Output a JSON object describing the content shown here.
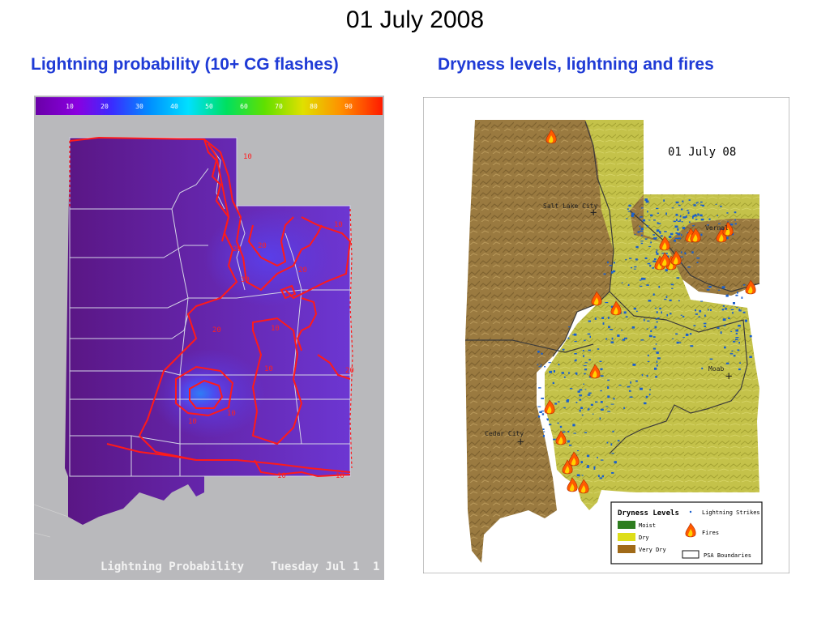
{
  "page": {
    "title": "01 July 2008",
    "left_heading": "Lightning probability (10+ CG flashes)",
    "right_heading": "Dryness levels, lightning and fires"
  },
  "left_map": {
    "colorbar_ticks": [
      "10",
      "20",
      "30",
      "40",
      "50",
      "60",
      "70",
      "80",
      "90"
    ],
    "caption_product": "Lightning Probability",
    "caption_date": "Tuesday Jul  1",
    "contour_labels": [
      "10",
      "20",
      "30",
      "20",
      "20",
      "10",
      "10",
      "20",
      "10",
      "10",
      "20",
      "10",
      "10",
      "10"
    ],
    "colors": {
      "background": "#b9b9bc",
      "field_low": "#5e1a8c",
      "field_mid": "#6a2fd8",
      "field_high": "#2a6cf0",
      "contour": "#ff1a1a",
      "boundaries": "#d8d8e8"
    }
  },
  "right_map": {
    "date_label": "01 July 08",
    "cities": [
      {
        "name": "Salt Lake City"
      },
      {
        "name": "Vernal"
      },
      {
        "name": "Moab"
      },
      {
        "name": "Cedar City"
      }
    ],
    "legend": {
      "title": "Dryness Levels",
      "items": [
        {
          "label": "Moist",
          "color": "#2e7d1f"
        },
        {
          "label": "Dry",
          "color": "#dede1a"
        },
        {
          "label": "Very Dry",
          "color": "#a06a18"
        }
      ],
      "symbols": [
        {
          "label": "Lightning Strikes",
          "icon": "dot-icon"
        },
        {
          "label": "Fires",
          "icon": "flame-icon"
        },
        {
          "label": "PSA Boundaries",
          "icon": "rectangle-outline-icon"
        }
      ]
    },
    "colors": {
      "very_dry": "#9a7a40",
      "dry": "#c4c24a",
      "lightning": "#1a5fcc",
      "fire": "#ff5a00"
    }
  }
}
